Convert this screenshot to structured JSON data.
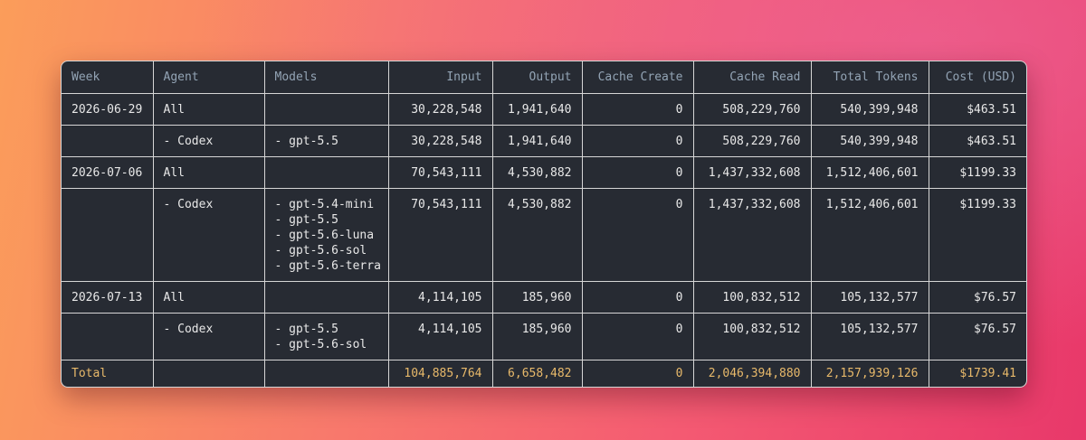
{
  "header": {
    "columns": [
      "Week",
      "Agent",
      "Models",
      "Input",
      "Output",
      "Cache Create",
      "Cache Read",
      "Total Tokens",
      "Cost (USD)"
    ]
  },
  "table": {
    "rows": [
      {
        "week": "2026-06-29",
        "agent": "All",
        "input": "30,228,548",
        "output": "1,941,640",
        "cache_create": "0",
        "cache_read": "508,229,760",
        "total_tokens": "540,399,948",
        "cost": "$463.51"
      },
      {
        "agent": "- Codex",
        "models": [
          "- gpt-5.5"
        ],
        "input": "30,228,548",
        "output": "1,941,640",
        "cache_create": "0",
        "cache_read": "508,229,760",
        "total_tokens": "540,399,948",
        "cost": "$463.51"
      },
      {
        "week": "2026-07-06",
        "agent": "All",
        "input": "70,543,111",
        "output": "4,530,882",
        "cache_create": "0",
        "cache_read": "1,437,332,608",
        "total_tokens": "1,512,406,601",
        "cost": "$1199.33"
      },
      {
        "agent": "- Codex",
        "models": [
          "- gpt-5.4-mini",
          "- gpt-5.5",
          "- gpt-5.6-luna",
          "- gpt-5.6-sol",
          "- gpt-5.6-terra"
        ],
        "input": "70,543,111",
        "output": "4,530,882",
        "cache_create": "0",
        "cache_read": "1,437,332,608",
        "total_tokens": "1,512,406,601",
        "cost": "$1199.33"
      },
      {
        "week": "2026-07-13",
        "agent": "All",
        "input": "4,114,105",
        "output": "185,960",
        "cache_create": "0",
        "cache_read": "100,832,512",
        "total_tokens": "105,132,577",
        "cost": "$76.57"
      },
      {
        "agent": "- Codex",
        "models": [
          "- gpt-5.5",
          "- gpt-5.6-sol"
        ],
        "input": "4,114,105",
        "output": "185,960",
        "cache_create": "0",
        "cache_read": "100,832,512",
        "total_tokens": "105,132,577",
        "cost": "$76.57"
      }
    ],
    "total": {
      "week": "Total",
      "input": "104,885,764",
      "output": "6,658,482",
      "cache_create": "0",
      "cache_read": "2,046,394,880",
      "total_tokens": "2,157,939,126",
      "cost": "$1739.41"
    }
  }
}
